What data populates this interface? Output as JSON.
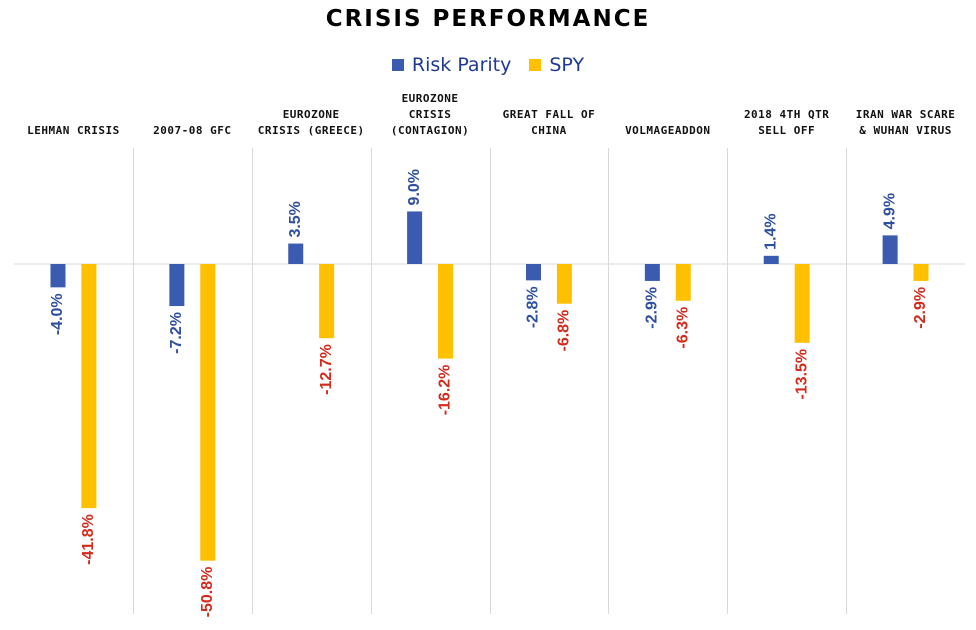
{
  "chart_data": {
    "type": "bar",
    "title": "CRISIS PERFORMANCE",
    "categories": [
      [
        "LEHMAN CRISIS"
      ],
      [
        "2007-08 GFC"
      ],
      [
        "EUROZONE",
        "CRISIS (GREECE)"
      ],
      [
        "EUROZONE",
        "CRISIS",
        "(CONTAGION)"
      ],
      [
        "GREAT FALL OF",
        "CHINA"
      ],
      [
        "VOLMAGEADDON"
      ],
      [
        "2018 4TH QTR",
        "SELL OFF"
      ],
      [
        "IRAN WAR SCARE",
        "& WUHAN VIRUS"
      ]
    ],
    "series": [
      {
        "name": "Risk Parity",
        "color": "#3a5bb0",
        "label_color": "#2f4f9f",
        "values": [
          -4.0,
          -7.2,
          3.5,
          9.0,
          -2.8,
          -2.9,
          1.4,
          4.9
        ],
        "labels": [
          "-4.0%",
          "-7.2%",
          "3.5%",
          "9.0%",
          "-2.8%",
          "-2.9%",
          "1.4%",
          "4.9%"
        ]
      },
      {
        "name": "SPY",
        "color": "#ffc000",
        "label_color": "#d42a1c",
        "values": [
          -41.8,
          -50.8,
          -12.7,
          -16.2,
          -6.8,
          -6.3,
          -13.5,
          -2.9
        ],
        "labels": [
          "-41.8%",
          "-50.8%",
          "-12.7%",
          "-16.2%",
          "-6.8%",
          "-6.3%",
          "-13.5%",
          "-2.9%"
        ]
      }
    ],
    "ylim": [
      -60,
      20
    ],
    "xlabel": "",
    "ylabel": "",
    "grid": false,
    "legend_position": "top-center"
  }
}
